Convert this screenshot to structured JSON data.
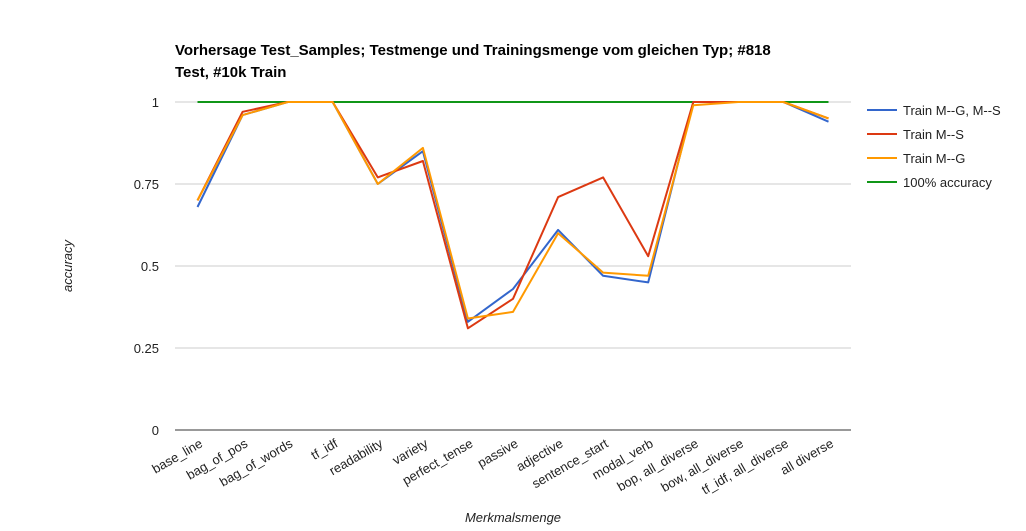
{
  "chart_data": {
    "type": "line",
    "title_lines": [
      "Vorhersage Test_Samples; Testmenge und Trainingsmenge vom gleichen Typ; #818",
      "Test, #10k Train"
    ],
    "xlabel": "Merkmalsmenge",
    "ylabel": "accuracy",
    "ylim": [
      0,
      1
    ],
    "yticks": [
      0,
      0.25,
      0.5,
      0.75,
      1
    ],
    "ytick_labels": [
      "0",
      "0.25",
      "0.5",
      "0.75",
      "1"
    ],
    "grid": true,
    "legend_position": "right",
    "categories": [
      "base_line",
      "bag_of_pos",
      "bag_of_words",
      "tf_idf",
      "readability",
      "variety",
      "perfect_tense",
      "passive",
      "adjective",
      "sentence_start",
      "modal_verb",
      "bop, all_diverse",
      "bow, all_diverse",
      "tf_idf, all_diverse",
      "all diverse"
    ],
    "series": [
      {
        "name": "Train M--G, M--S",
        "color": "#3366cc",
        "values": [
          0.68,
          0.96,
          1.0,
          1.0,
          0.75,
          0.85,
          0.33,
          0.43,
          0.61,
          0.47,
          0.45,
          1.0,
          1.0,
          1.0,
          0.94
        ]
      },
      {
        "name": "Train M--S",
        "color": "#dc3912",
        "values": [
          0.7,
          0.97,
          1.0,
          1.0,
          0.77,
          0.82,
          0.31,
          0.4,
          0.71,
          0.77,
          0.53,
          1.0,
          1.0,
          1.0,
          0.95
        ]
      },
      {
        "name": "Train M--G",
        "color": "#ff9900",
        "values": [
          0.7,
          0.96,
          1.0,
          1.0,
          0.75,
          0.86,
          0.34,
          0.36,
          0.6,
          0.48,
          0.47,
          0.99,
          1.0,
          1.0,
          0.95
        ]
      },
      {
        "name": "100% accuracy",
        "color": "#109618",
        "values": [
          1,
          1,
          1,
          1,
          1,
          1,
          1,
          1,
          1,
          1,
          1,
          1,
          1,
          1,
          1
        ]
      }
    ]
  }
}
